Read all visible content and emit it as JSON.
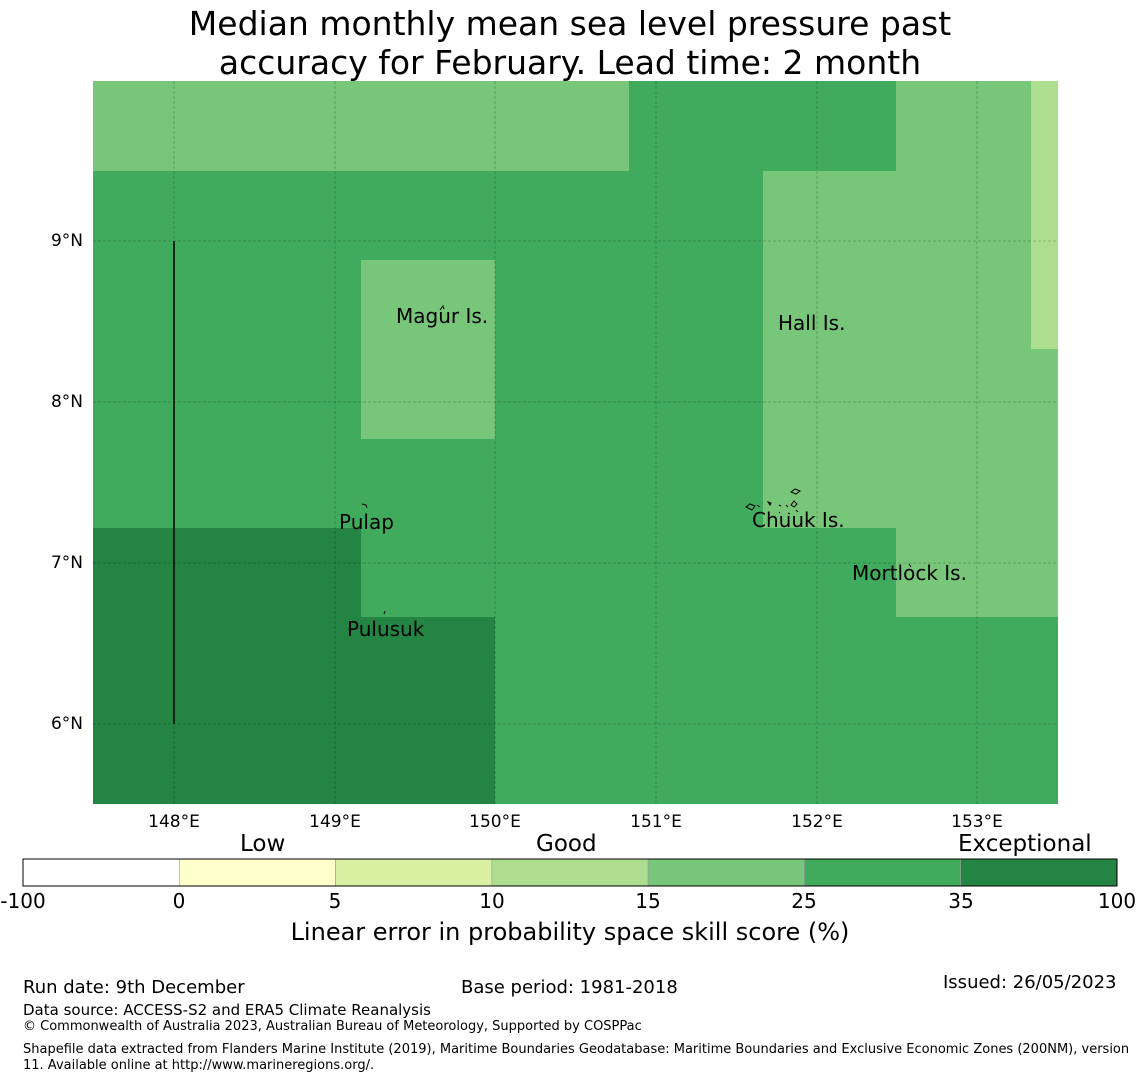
{
  "title": {
    "line1": "Median monthly mean sea level pressure past",
    "line2": "accuracy for February. Lead time: 2 month"
  },
  "map": {
    "lat_labels": [
      "9°N",
      "8°N",
      "7°N",
      "6°N"
    ],
    "lon_labels": [
      "148°E",
      "149°E",
      "150°E",
      "151°E",
      "152°E",
      "153°E"
    ],
    "places": [
      "Magur Is.",
      "Hall Is.",
      "Pulap",
      "Chuuk Is.",
      "Mortlock Is.",
      "Pulusuk"
    ],
    "colors": {
      "light_green": "#78c679",
      "mid_green": "#41ab5d",
      "dark_green": "#238443",
      "pale_green": "#addd8e"
    }
  },
  "colorbar": {
    "categories": [
      "Low",
      "Good",
      "Exceptional"
    ],
    "ticks": [
      "-100",
      "0",
      "5",
      "10",
      "15",
      "25",
      "35",
      "100"
    ],
    "colors": [
      "#ffffff",
      "#ffffcc",
      "#d9f0a3",
      "#addd8e",
      "#78c679",
      "#41ab5d",
      "#238443"
    ],
    "label": "Linear error in probability space skill score (%)"
  },
  "footer": {
    "run_date": "Run date: 9th December",
    "base_period": "Base period: 1981-2018",
    "issued": "Issued: 26/05/2023",
    "data_source": "Data source: ACCESS-S2 and ERA5 Climate Reanalysis",
    "copyright": "© Commonwealth of Australia 2023, Australian Bureau of Meteorology, Supported by COSPPac",
    "shapefile": "Shapefile data extracted from Flanders Marine Institute (2019), Maritime Boundaries Geodatabase: Maritime Boundaries and Exclusive Economic Zones (200NM), version 11. Available online at http://www.marineregions.org/."
  }
}
